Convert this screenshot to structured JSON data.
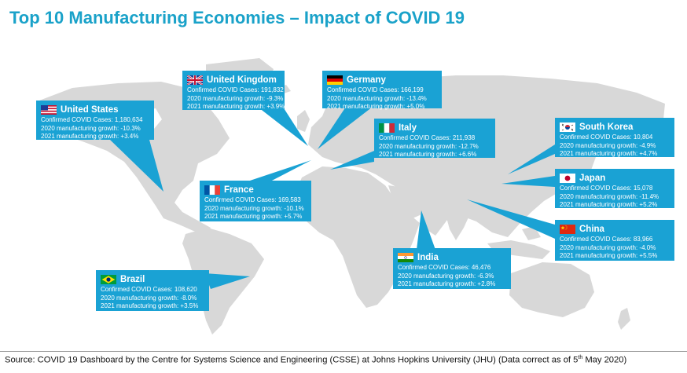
{
  "title": "Top 10 Manufacturing Economies – Impact of COVID 19",
  "labels": {
    "cases": "Confirmed COVID Cases:",
    "g2020": "2020 manufacturing growth:",
    "g2021": "2021 manufacturing growth:"
  },
  "countries": {
    "us": {
      "name": "United States",
      "cases": "1,180,634",
      "g2020": "-10.3%",
      "g2021": "+3.4%"
    },
    "uk": {
      "name": "United Kingdom",
      "cases": "191,832",
      "g2020": "-9.3%",
      "g2021": "+3.9%"
    },
    "de": {
      "name": "Germany",
      "cases": "166,199",
      "g2020": "-13.4%",
      "g2021": "+5.0%"
    },
    "it": {
      "name": "Italy",
      "cases": "211,938",
      "g2020": "-12.7%",
      "g2021": "+6.6%"
    },
    "fr": {
      "name": "France",
      "cases": "169,583",
      "g2020": "-10.1%",
      "g2021": "+5.7%"
    },
    "kr": {
      "name": "South Korea",
      "cases": "10,804",
      "g2020": "-4.9%",
      "g2021": "+4.7%"
    },
    "jp": {
      "name": "Japan",
      "cases": "15,078",
      "g2020": "-11.4%",
      "g2021": "+5.2%"
    },
    "cn": {
      "name": "China",
      "cases": "83,966",
      "g2020": "-4.0%",
      "g2021": "+5.5%"
    },
    "in": {
      "name": "India",
      "cases": "46,476",
      "g2020": "-6.3%",
      "g2021": "+2.8%"
    },
    "br": {
      "name": "Brazil",
      "cases": "108,620",
      "g2020": "-8.0%",
      "g2021": "+3.5%"
    }
  },
  "source": {
    "text": "Source: COVID 19 Dashboard by the Centre for Systems Science and Engineering (CSSE) at Johns Hopkins University (JHU) (Data correct as of 5",
    "sup": "th",
    "end": " May 2020)"
  },
  "colors": {
    "accent": "#1aa2d4",
    "title": "#1aa2c9",
    "land": "#d6d6d6"
  }
}
